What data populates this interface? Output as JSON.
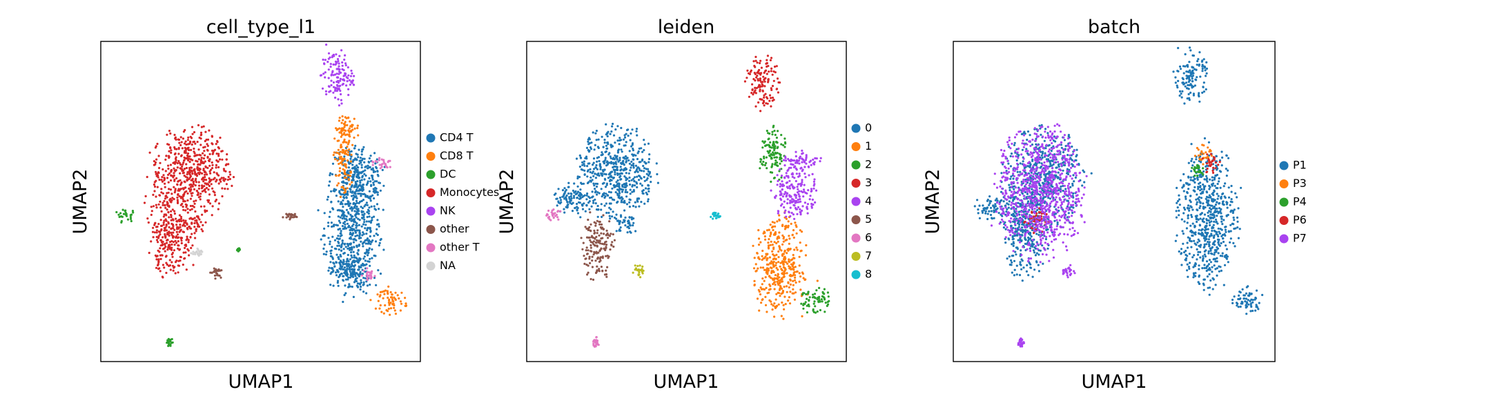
{
  "chart_data": [
    {
      "type": "scatter",
      "title": "cell_type_l1",
      "xlabel": "UMAP1",
      "ylabel": "UMAP2",
      "xlim": [
        0,
        100
      ],
      "ylim": [
        0,
        100
      ],
      "grid": false,
      "legend_position": "right",
      "series": [
        {
          "name": "CD4 T",
          "color": "#1f77b4",
          "clusters": [
            {
              "x": 79,
              "y": 40,
              "rx": 9,
              "ry": 18
            },
            {
              "x": 80,
              "y": 58,
              "rx": 8,
              "ry": 10
            },
            {
              "x": 78,
              "y": 28,
              "rx": 6,
              "ry": 6
            }
          ]
        },
        {
          "name": "CD8 T",
          "color": "#ff7f0e",
          "clusters": [
            {
              "x": 76,
              "y": 63,
              "rx": 3,
              "ry": 11
            },
            {
              "x": 77,
              "y": 73,
              "rx": 4,
              "ry": 4
            },
            {
              "x": 91,
              "y": 19,
              "rx": 5,
              "ry": 4
            }
          ]
        },
        {
          "name": "DC",
          "color": "#2ca02c",
          "clusters": [
            {
              "x": 8,
              "y": 45.5,
              "rx": 3.5,
              "ry": 2
            },
            {
              "x": 21.5,
              "y": 6,
              "rx": 1,
              "ry": 1.5
            },
            {
              "x": 43,
              "y": 35,
              "rx": 0.5,
              "ry": 0.5
            }
          ]
        },
        {
          "name": "Monocytes",
          "color": "#d62728",
          "clusters": [
            {
              "x": 28,
              "y": 59,
              "rx": 12,
              "ry": 14
            },
            {
              "x": 22,
              "y": 40,
              "rx": 7,
              "ry": 13
            },
            {
              "x": 30,
              "y": 43,
              "rx": 3,
              "ry": 3
            }
          ]
        },
        {
          "name": "NK",
          "color": "#a943f0",
          "clusters": [
            {
              "x": 74,
              "y": 89,
              "rx": 5,
              "ry": 8
            }
          ]
        },
        {
          "name": "other",
          "color": "#8c564b",
          "clusters": [
            {
              "x": 36,
              "y": 28,
              "rx": 2,
              "ry": 2
            },
            {
              "x": 59,
              "y": 45.5,
              "rx": 2,
              "ry": 1
            }
          ]
        },
        {
          "name": "other T",
          "color": "#e377c2",
          "clusters": [
            {
              "x": 88,
              "y": 62,
              "rx": 4,
              "ry": 2
            },
            {
              "x": 84,
              "y": 27,
              "rx": 2,
              "ry": 2
            }
          ]
        },
        {
          "name": "NA",
          "color": "#d3d3d3",
          "clusters": [
            {
              "x": 30,
              "y": 34,
              "rx": 2,
              "ry": 1
            }
          ]
        }
      ]
    },
    {
      "type": "scatter",
      "title": "leiden",
      "xlabel": "UMAP1",
      "ylabel": "UMAP2",
      "xlim": [
        0,
        100
      ],
      "ylim": [
        0,
        100
      ],
      "grid": false,
      "legend_position": "right",
      "series": [
        {
          "name": "0",
          "color": "#1f77b4",
          "clusters": [
            {
              "x": 28,
              "y": 59,
              "rx": 12,
              "ry": 14
            },
            {
              "x": 14,
              "y": 50,
              "rx": 6,
              "ry": 5
            },
            {
              "x": 31,
              "y": 43,
              "rx": 4,
              "ry": 3
            }
          ]
        },
        {
          "name": "1",
          "color": "#ff7f0e",
          "clusters": [
            {
              "x": 79,
              "y": 30,
              "rx": 8,
              "ry": 15
            }
          ]
        },
        {
          "name": "2",
          "color": "#2ca02c",
          "clusters": [
            {
              "x": 77,
              "y": 65,
              "rx": 4,
              "ry": 9
            },
            {
              "x": 90,
              "y": 19,
              "rx": 5,
              "ry": 4
            }
          ]
        },
        {
          "name": "3",
          "color": "#d62728",
          "clusters": [
            {
              "x": 74,
              "y": 87,
              "rx": 5,
              "ry": 8
            }
          ]
        },
        {
          "name": "4",
          "color": "#a943f0",
          "clusters": [
            {
              "x": 84,
              "y": 53,
              "rx": 7,
              "ry": 8
            },
            {
              "x": 86,
              "y": 63,
              "rx": 6,
              "ry": 3
            }
          ]
        },
        {
          "name": "5",
          "color": "#8c564b",
          "clusters": [
            {
              "x": 22,
              "y": 36,
              "rx": 5,
              "ry": 10
            }
          ]
        },
        {
          "name": "6",
          "color": "#e377c2",
          "clusters": [
            {
              "x": 8,
              "y": 46,
              "rx": 3,
              "ry": 2
            },
            {
              "x": 21.5,
              "y": 6,
              "rx": 1,
              "ry": 1.5
            }
          ]
        },
        {
          "name": "7",
          "color": "#bcbd22",
          "clusters": [
            {
              "x": 35,
              "y": 28,
              "rx": 2,
              "ry": 2
            }
          ]
        },
        {
          "name": "8",
          "color": "#17becf",
          "clusters": [
            {
              "x": 59,
              "y": 45.5,
              "rx": 1.5,
              "ry": 1
            }
          ]
        }
      ]
    },
    {
      "type": "scatter",
      "title": "batch",
      "xlabel": "UMAP1",
      "ylabel": "UMAP2",
      "xlim": [
        0,
        100
      ],
      "ylim": [
        0,
        100
      ],
      "grid": false,
      "legend_position": "right",
      "series": [
        {
          "name": "P1",
          "color": "#1f77b4",
          "clusters": [
            {
              "x": 28,
              "y": 57,
              "rx": 12,
              "ry": 15
            },
            {
              "x": 22,
              "y": 40,
              "rx": 7,
              "ry": 13
            },
            {
              "x": 79,
              "y": 45,
              "rx": 9,
              "ry": 22
            },
            {
              "x": 74,
              "y": 89,
              "rx": 5,
              "ry": 8
            },
            {
              "x": 91,
              "y": 19,
              "rx": 5,
              "ry": 4
            },
            {
              "x": 12,
              "y": 48,
              "rx": 5,
              "ry": 4
            }
          ]
        },
        {
          "name": "P3",
          "color": "#ff7f0e",
          "clusters": [
            {
              "x": 78,
              "y": 65,
              "rx": 3,
              "ry": 3
            }
          ]
        },
        {
          "name": "P4",
          "color": "#2ca02c",
          "clusters": [
            {
              "x": 76,
              "y": 60,
              "rx": 2,
              "ry": 2
            }
          ]
        },
        {
          "name": "P6",
          "color": "#d62728",
          "clusters": [
            {
              "x": 26,
              "y": 44,
              "rx": 4,
              "ry": 4
            },
            {
              "x": 80,
              "y": 62,
              "rx": 3,
              "ry": 3
            }
          ]
        },
        {
          "name": "P7",
          "color": "#a943f0",
          "clusters": [
            {
              "x": 27,
              "y": 53,
              "rx": 13,
              "ry": 20
            },
            {
              "x": 21,
              "y": 6,
              "rx": 1,
              "ry": 1.5
            },
            {
              "x": 36,
              "y": 28,
              "rx": 2,
              "ry": 2
            }
          ]
        }
      ]
    }
  ]
}
